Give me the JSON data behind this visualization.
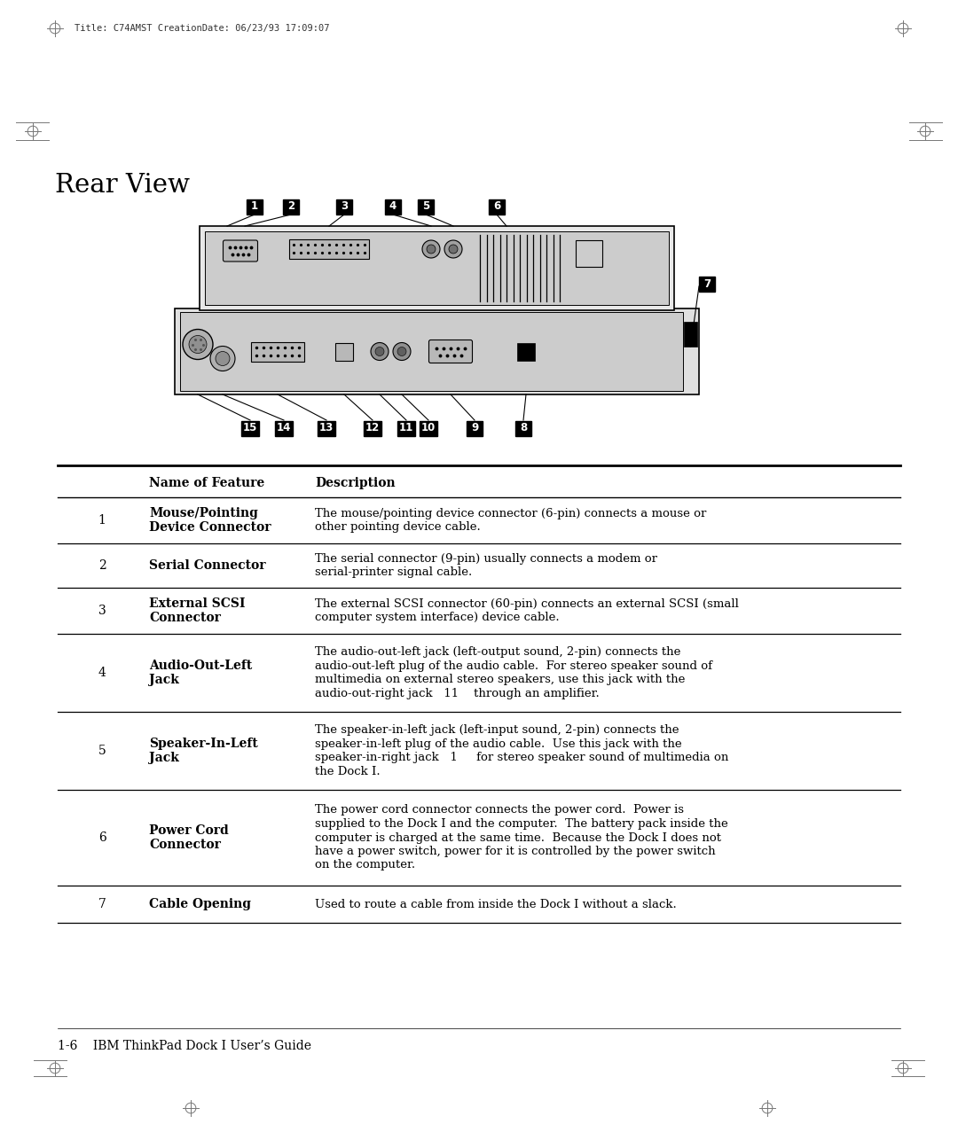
{
  "page_title": "Rear View",
  "header_text": "Title: C74AMST CreationDate: 06/23/93 17:09:07",
  "footer_text": "1-6    IBM ThinkPad Dock I User’s Guide",
  "bg_color": "#ffffff",
  "rows": [
    {
      "num": "1",
      "name": "Mouse/Pointing\nDevice Connector",
      "desc": "The mouse/pointing device connector (6-pin) connects a mouse or\nother pointing device cable."
    },
    {
      "num": "2",
      "name": "Serial Connector",
      "desc": "The serial connector (9-pin) usually connects a modem or\nserial-printer signal cable."
    },
    {
      "num": "3",
      "name": "External SCSI\nConnector",
      "desc": "The external SCSI connector (60-pin) connects an external SCSI (small\ncomputer system interface) device cable."
    },
    {
      "num": "4",
      "name": "Audio-Out-Left\nJack",
      "desc": "The audio-out-left jack (left-output sound, 2-pin) connects the\naudio-out-left plug of the audio cable.  For stereo speaker sound of\nmultimedia on external stereo speakers, use this jack with the\naudio-out-right jack   11    through an amplifier."
    },
    {
      "num": "5",
      "name": "Speaker-In-Left\nJack",
      "desc": "The speaker-in-left jack (left-input sound, 2-pin) connects the\nspeaker-in-left plug of the audio cable.  Use this jack with the\nspeaker-in-right jack   1     for stereo speaker sound of multimedia on\nthe Dock I."
    },
    {
      "num": "6",
      "name": "Power Cord\nConnector",
      "desc": "The power cord connector connects the power cord.  Power is\nsupplied to the Dock I and the computer.  The battery pack inside the\ncomputer is charged at the same time.  Because the Dock I does not\nhave a power switch, power for it is controlled by the power switch\non the computer."
    },
    {
      "num": "7",
      "name": "Cable Opening",
      "desc": "Used to route a cable from inside the Dock I without a slack."
    }
  ]
}
